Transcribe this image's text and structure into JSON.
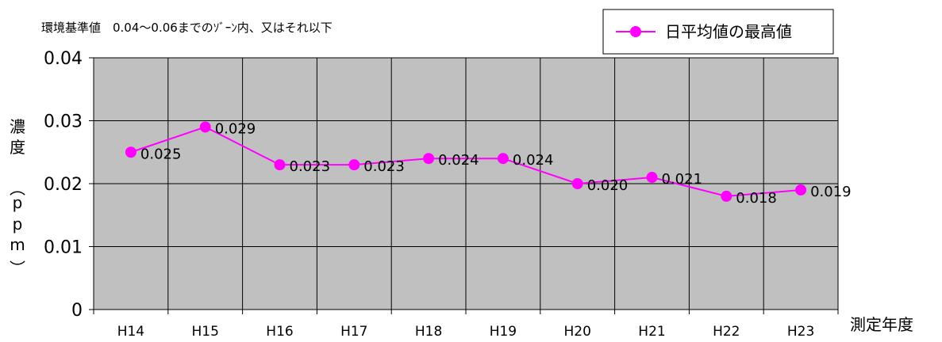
{
  "chart_data": {
    "type": "line",
    "annotation": "環境基準値　0.04～0.06までのｿﾞｰﾝ内、又はそれ以下",
    "ylabel": [
      "濃",
      "度",
      "︵",
      "p",
      "p",
      "m",
      "︶"
    ],
    "xlabel": "測定年度",
    "categories": [
      "H14",
      "H15",
      "H16",
      "H17",
      "H18",
      "H19",
      "H20",
      "H21",
      "H22",
      "H23"
    ],
    "yticks": [
      "0",
      "0.01",
      "0.02",
      "0.03",
      "0.04"
    ],
    "ylim": [
      0,
      0.04
    ],
    "grid": true,
    "legend": "top-right",
    "series": [
      {
        "name": "日平均値の最高値",
        "values": [
          0.025,
          0.029,
          0.023,
          0.023,
          0.024,
          0.024,
          0.02,
          0.021,
          0.018,
          0.019
        ],
        "labels": [
          "0.025",
          "0.029",
          "0.023",
          "0.023",
          "0.024",
          "0.024",
          "0.020",
          "0.021",
          "0.018",
          "0.019"
        ],
        "color": "#FF00FF"
      }
    ],
    "plot_background": "#C0C0C0"
  }
}
